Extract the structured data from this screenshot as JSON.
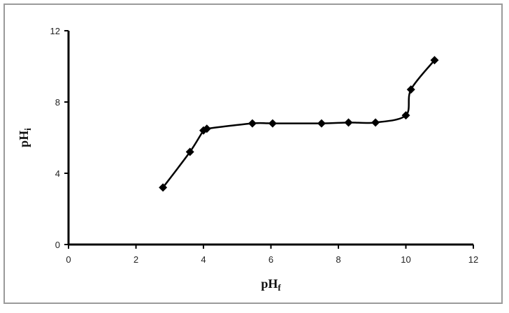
{
  "chart_data": {
    "type": "line",
    "title": "",
    "xlabel": "pH",
    "xlabel_subscript": "f",
    "ylabel": "pH",
    "ylabel_subscript": "i",
    "xlim": [
      0,
      12
    ],
    "ylim": [
      0,
      12
    ],
    "xticks": [
      0,
      2,
      4,
      6,
      8,
      10,
      12
    ],
    "yticks": [
      0,
      4,
      8,
      12
    ],
    "grid": false,
    "legend": "none",
    "marker": "diamond",
    "line_color": "#000000",
    "series": [
      {
        "x": [
          2.8,
          3.6,
          4.0,
          4.1,
          5.45,
          6.05,
          7.5,
          8.3,
          9.1,
          10.0,
          10.15,
          10.85
        ],
        "y": [
          3.2,
          5.2,
          6.4,
          6.5,
          6.8,
          6.8,
          6.8,
          6.85,
          6.85,
          7.25,
          8.7,
          10.35
        ]
      }
    ]
  }
}
